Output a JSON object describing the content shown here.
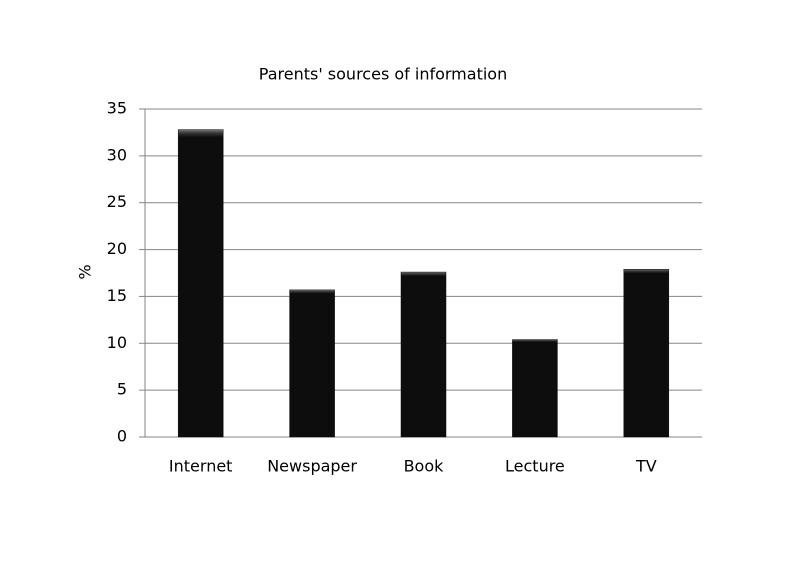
{
  "chart_data": {
    "type": "bar",
    "title": "Parents' sources of information",
    "y_label": "%",
    "categories": [
      "Internet",
      "Newspaper",
      "Book",
      "Lecture",
      "TV"
    ],
    "values": [
      32.8,
      15.7,
      17.6,
      10.4,
      17.9
    ],
    "color": "#0d0d0d",
    "ylim": [
      0,
      35
    ],
    "yticks": [
      0,
      5,
      10,
      15,
      20,
      25,
      30,
      35
    ],
    "grid": true
  }
}
